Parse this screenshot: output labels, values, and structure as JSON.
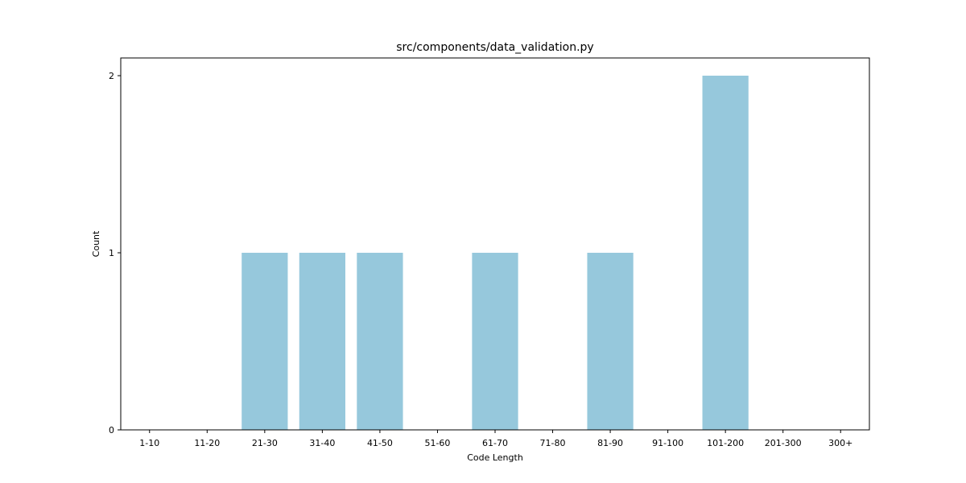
{
  "chart_data": {
    "type": "bar",
    "title": "src/components/data_validation.py",
    "xlabel": "Code Length",
    "ylabel": "Count",
    "categories": [
      "1-10",
      "11-20",
      "21-30",
      "31-40",
      "41-50",
      "51-60",
      "61-70",
      "71-80",
      "81-90",
      "91-100",
      "101-200",
      "201-300",
      "300+"
    ],
    "values": [
      0,
      0,
      1,
      1,
      1,
      0,
      1,
      0,
      1,
      0,
      2,
      0,
      0
    ],
    "ylim": [
      0,
      2.1
    ],
    "yticks": [
      0,
      1,
      2
    ],
    "bar_color": "#96c8dc",
    "grid": false,
    "legend": "none"
  }
}
